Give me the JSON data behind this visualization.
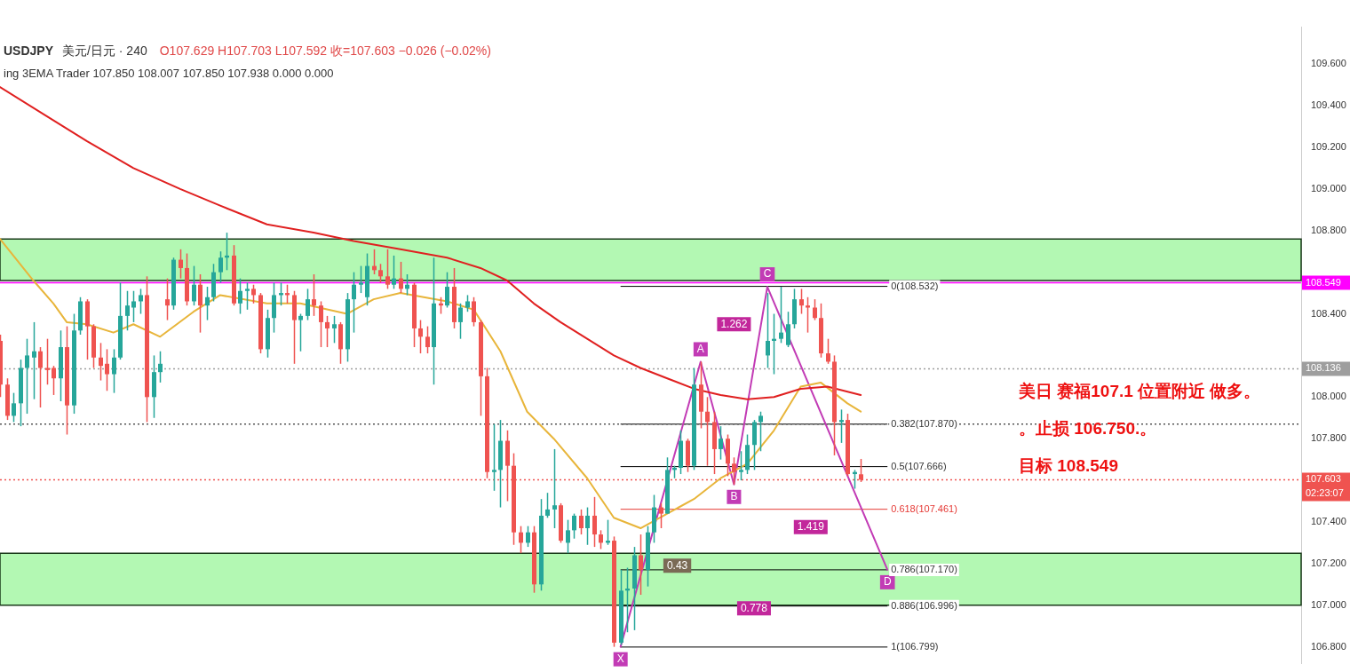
{
  "chart_data": {
    "type": "candlestick",
    "title": "USDJPY",
    "subtitle": "美元/日元 · 240",
    "categories": [
      null,
      null,
      null,
      null,
      null,
      null,
      null,
      null,
      null,
      null,
      null,
      null,
      null,
      null,
      null,
      null,
      null,
      null,
      null,
      null,
      null,
      null,
      null,
      null,
      null,
      null,
      null,
      null,
      null,
      null,
      null,
      null,
      null,
      null,
      null,
      null,
      null,
      null,
      null,
      null,
      null,
      null,
      null,
      null,
      null,
      null,
      null,
      null,
      null,
      null,
      null,
      null,
      null,
      null,
      null,
      null,
      null,
      null,
      null,
      null,
      null,
      null,
      null,
      null,
      null,
      null,
      null,
      null,
      null,
      null,
      null,
      null,
      null,
      null,
      null,
      null,
      null,
      null,
      null,
      null,
      null,
      null,
      null,
      null,
      null,
      null,
      null,
      null,
      null,
      null,
      null,
      null,
      null,
      null,
      null,
      null,
      null,
      null,
      null,
      null,
      null,
      null,
      null,
      null,
      null,
      null,
      null,
      null,
      null,
      null,
      null,
      null,
      null,
      null,
      null,
      null,
      null,
      null,
      null,
      null,
      null,
      null,
      null,
      null,
      null,
      null,
      null,
      null,
      null,
      null,
      null,
      null,
      null,
      null,
      null,
      null,
      null,
      null,
      null,
      null,
      null,
      null,
      null,
      null,
      null,
      null,
      null,
      null,
      null,
      null,
      null,
      null,
      null,
      null,
      null,
      null,
      null,
      null,
      null,
      null,
      null,
      null,
      null,
      null,
      null,
      null,
      null,
      null,
      null,
      null,
      null,
      null,
      null,
      null,
      null,
      null,
      null,
      null,
      null,
      null,
      null,
      null,
      null,
      null,
      null,
      null,
      null,
      null,
      null,
      null,
      null,
      null,
      null,
      null,
      null,
      null
    ],
    "ohlc": [
      [
        108.27,
        108.3,
        108.0,
        108.06
      ],
      [
        108.06,
        108.09,
        107.89,
        107.91
      ],
      [
        107.91,
        108.02,
        107.88,
        107.97
      ],
      [
        107.97,
        108.18,
        107.86,
        108.14
      ],
      [
        108.14,
        108.28,
        107.92,
        108.2
      ],
      [
        108.19,
        108.36,
        107.99,
        108.22
      ],
      [
        108.22,
        108.24,
        107.95,
        108.14
      ],
      [
        108.14,
        108.28,
        108.06,
        108.13
      ],
      [
        108.14,
        108.15,
        108.01,
        108.09
      ],
      [
        108.09,
        108.32,
        107.98,
        108.24
      ],
      [
        108.24,
        108.34,
        107.82,
        107.96
      ],
      [
        107.96,
        108.4,
        107.92,
        108.32
      ],
      [
        108.32,
        108.48,
        108.3,
        108.46
      ],
      [
        108.46,
        108.47,
        108.18,
        108.34
      ],
      [
        108.34,
        108.35,
        108.14,
        108.19
      ],
      [
        108.19,
        108.26,
        108.08,
        108.15
      ],
      [
        108.16,
        108.23,
        108.03,
        108.11
      ],
      [
        108.11,
        108.23,
        108.02,
        108.19
      ],
      [
        108.19,
        108.55,
        108.18,
        108.39
      ],
      [
        108.39,
        108.51,
        108.32,
        108.44
      ],
      [
        108.43,
        108.51,
        108.36,
        108.46
      ],
      [
        108.46,
        108.52,
        108.4,
        108.49
      ],
      [
        108.49,
        108.58,
        107.88,
        108.0
      ],
      [
        108.0,
        108.2,
        107.9,
        108.12
      ],
      [
        108.12,
        108.22,
        108.07,
        108.16
      ],
      [
        108.47,
        108.57,
        108.37,
        108.44
      ],
      [
        108.44,
        108.67,
        108.42,
        108.66
      ],
      [
        108.66,
        108.71,
        108.57,
        108.62
      ],
      [
        108.62,
        108.69,
        108.44,
        108.46
      ],
      [
        108.46,
        108.63,
        108.44,
        108.54
      ],
      [
        108.54,
        108.59,
        108.31,
        108.44
      ],
      [
        108.44,
        108.53,
        108.37,
        108.48
      ],
      [
        108.48,
        108.64,
        108.46,
        108.6
      ],
      [
        108.6,
        108.7,
        108.55,
        108.67
      ],
      [
        108.67,
        108.79,
        108.61,
        108.68
      ],
      [
        108.68,
        108.73,
        108.44,
        108.45
      ],
      [
        108.45,
        108.57,
        108.4,
        108.51
      ],
      [
        108.51,
        108.55,
        108.42,
        108.52
      ],
      [
        108.52,
        108.54,
        108.45,
        108.49
      ],
      [
        108.49,
        108.5,
        108.21,
        108.23
      ],
      [
        108.23,
        108.42,
        108.19,
        108.38
      ],
      [
        108.38,
        108.55,
        108.31,
        108.49
      ],
      [
        108.49,
        108.55,
        108.44,
        108.5
      ],
      [
        108.5,
        108.54,
        108.45,
        108.49
      ],
      [
        108.49,
        108.51,
        108.16,
        108.37
      ],
      [
        108.37,
        108.4,
        108.22,
        108.39
      ],
      [
        108.39,
        108.52,
        108.37,
        108.47
      ],
      [
        108.47,
        108.59,
        108.39,
        108.44
      ],
      [
        108.44,
        108.46,
        108.24,
        108.36
      ],
      [
        108.36,
        108.39,
        108.24,
        108.33
      ],
      [
        108.33,
        108.39,
        108.26,
        108.35
      ],
      [
        108.35,
        108.36,
        108.16,
        108.23
      ],
      [
        108.23,
        108.5,
        108.17,
        108.47
      ],
      [
        108.47,
        108.6,
        108.31,
        108.54
      ],
      [
        108.54,
        108.63,
        108.5,
        108.55
      ],
      [
        108.48,
        108.69,
        108.44,
        108.63
      ],
      [
        108.63,
        108.71,
        108.59,
        108.61
      ],
      [
        108.61,
        108.64,
        108.55,
        108.58
      ],
      [
        108.58,
        108.71,
        108.52,
        108.54
      ],
      [
        108.54,
        108.68,
        108.52,
        108.57
      ],
      [
        108.57,
        108.65,
        108.5,
        108.52
      ],
      [
        108.52,
        108.59,
        108.49,
        108.54
      ],
      [
        108.54,
        108.55,
        108.24,
        108.33
      ],
      [
        108.33,
        108.37,
        108.21,
        108.29
      ],
      [
        108.29,
        108.34,
        108.21,
        108.24
      ],
      [
        108.24,
        108.67,
        108.06,
        108.45
      ],
      [
        108.45,
        108.48,
        108.4,
        108.44
      ],
      [
        108.44,
        108.6,
        108.43,
        108.53
      ],
      [
        108.53,
        108.62,
        108.33,
        108.36
      ],
      [
        108.36,
        108.45,
        108.28,
        108.43
      ],
      [
        108.43,
        108.49,
        108.41,
        108.46
      ],
      [
        108.46,
        108.48,
        108.34,
        108.36
      ],
      [
        108.36,
        108.37,
        107.91,
        108.1
      ],
      [
        108.1,
        108.14,
        107.61,
        107.64
      ],
      [
        107.64,
        107.87,
        107.55,
        107.65
      ],
      [
        107.65,
        107.89,
        107.47,
        107.79
      ],
      [
        107.79,
        107.84,
        107.5,
        107.67
      ],
      [
        107.67,
        107.73,
        107.29,
        107.35
      ],
      [
        107.35,
        107.38,
        107.25,
        107.3
      ],
      [
        107.3,
        107.38,
        107.28,
        107.35
      ],
      [
        107.35,
        107.38,
        107.06,
        107.1
      ],
      [
        107.1,
        107.51,
        107.07,
        107.43
      ],
      [
        107.43,
        107.54,
        107.42,
        107.46
      ],
      [
        107.46,
        107.75,
        107.37,
        107.48
      ],
      [
        107.48,
        107.49,
        107.3,
        107.31
      ],
      [
        107.3,
        107.41,
        107.25,
        107.36
      ],
      [
        107.36,
        107.44,
        107.32,
        107.43
      ],
      [
        107.43,
        107.46,
        107.34,
        107.37
      ],
      [
        107.37,
        107.47,
        107.29,
        107.43
      ],
      [
        107.43,
        107.52,
        107.28,
        107.34
      ],
      [
        107.34,
        107.36,
        107.27,
        107.3
      ],
      [
        107.3,
        107.41,
        107.29,
        107.31
      ],
      [
        107.31,
        107.33,
        106.8,
        106.82
      ],
      [
        106.82,
        107.17,
        106.81,
        107.07
      ],
      [
        107.07,
        107.18,
        106.87,
        107.08
      ],
      [
        107.08,
        107.28,
        106.88,
        107.24
      ],
      [
        107.24,
        107.34,
        107.05,
        107.17
      ],
      [
        107.17,
        107.38,
        107.09,
        107.35
      ],
      [
        107.35,
        107.53,
        107.3,
        107.47
      ],
      [
        107.47,
        107.49,
        107.37,
        107.44
      ],
      [
        107.44,
        107.71,
        107.44,
        107.65
      ],
      [
        107.65,
        107.67,
        107.61,
        107.66
      ],
      [
        107.66,
        107.84,
        107.63,
        107.79
      ],
      [
        107.79,
        107.8,
        107.64,
        107.67
      ],
      [
        107.67,
        108.14,
        107.65,
        108.06
      ],
      [
        108.06,
        108.17,
        107.85,
        107.93
      ],
      [
        107.93,
        108.0,
        107.67,
        107.88
      ],
      [
        107.88,
        107.93,
        107.63,
        107.75
      ],
      [
        107.75,
        107.86,
        107.7,
        107.8
      ],
      [
        107.8,
        107.82,
        107.62,
        107.68
      ],
      [
        107.68,
        107.71,
        107.58,
        107.64
      ],
      [
        107.64,
        107.74,
        107.6,
        107.65
      ],
      [
        107.65,
        107.82,
        107.63,
        107.77
      ],
      [
        107.77,
        107.89,
        107.65,
        107.88
      ],
      [
        107.88,
        107.93,
        107.74,
        107.91
      ],
      [
        108.2,
        108.5,
        108.14,
        108.27
      ],
      [
        108.27,
        108.4,
        108.11,
        108.28
      ],
      [
        108.28,
        108.53,
        108.26,
        108.31
      ],
      [
        108.25,
        108.41,
        108.24,
        108.35
      ],
      [
        108.35,
        108.52,
        108.33,
        108.47
      ],
      [
        108.47,
        108.52,
        108.4,
        108.44
      ],
      [
        108.44,
        108.48,
        108.31,
        108.43
      ],
      [
        108.43,
        108.47,
        108.37,
        108.38
      ],
      [
        108.38,
        108.45,
        108.19,
        108.21
      ],
      [
        108.21,
        108.28,
        108.16,
        108.17
      ],
      [
        108.17,
        108.2,
        107.72,
        107.88
      ],
      [
        107.88,
        107.94,
        107.78,
        107.89
      ],
      [
        107.89,
        107.92,
        107.62,
        107.63
      ],
      [
        107.63,
        107.65,
        107.56,
        107.64
      ],
      [
        107.629,
        107.703,
        107.592,
        107.603
      ],
      null,
      null,
      null,
      null,
      null,
      null,
      null,
      null,
      null,
      null,
      null,
      null,
      null,
      null,
      null,
      null,
      null,
      null,
      null,
      null,
      null,
      null,
      null,
      null,
      null,
      null,
      null,
      null,
      null,
      null,
      null,
      null,
      null,
      null,
      null,
      null,
      null,
      null,
      null,
      null,
      null,
      null,
      null,
      null,
      null,
      null,
      null,
      null,
      null,
      null,
      null,
      null,
      null,
      null,
      null,
      null,
      null,
      null,
      null,
      null,
      null,
      null,
      null,
      null,
      null,
      null
    ],
    "colors": [
      "#ef5350",
      "#ef5350",
      "#26a69a",
      "#26a69a",
      "#26a69a",
      "#26a69a",
      "#ef5350",
      "#ef5350",
      "#ef5350",
      "#26a69a",
      "#ef5350",
      "#26a69a",
      "#26a69a",
      "#ef5350",
      "#ef5350",
      "#ef5350",
      "#ef5350",
      "#26a69a",
      "#26a69a",
      "#26a69a",
      "#26a69a",
      "#26a69a",
      "#ef5350",
      "#26a69a",
      "#26a69a",
      "#ef5350",
      "#26a69a",
      "#ef5350",
      "#ef5350",
      "#26a69a",
      "#ef5350",
      "#26a69a",
      "#26a69a",
      "#26a69a",
      "#26a69a",
      "#ef5350",
      "#26a69a",
      "#26a69a",
      "#ef5350",
      "#ef5350",
      "#26a69a",
      "#26a69a",
      "#26a69a",
      "#ef5350",
      "#ef5350",
      "#26a69a",
      "#26a69a",
      "#ef5350",
      "#ef5350",
      "#ef5350",
      "#26a69a",
      "#ef5350",
      "#26a69a",
      "#26a69a",
      "#26a69a",
      "#26a69a",
      "#ef5350",
      "#ef5350",
      "#ef5350",
      "#26a69a",
      "#ef5350",
      "#26a69a",
      "#ef5350",
      "#ef5350",
      "#ef5350",
      "#26a69a",
      "#ef5350",
      "#26a69a",
      "#ef5350",
      "#26a69a",
      "#26a69a",
      "#ef5350",
      "#ef5350",
      "#ef5350",
      "#26a69a",
      "#26a69a",
      "#ef5350",
      "#ef5350",
      "#ef5350",
      "#26a69a",
      "#ef5350",
      "#26a69a",
      "#26a69a",
      "#26a69a",
      "#ef5350",
      "#26a69a",
      "#26a69a",
      "#ef5350",
      "#26a69a",
      "#ef5350",
      "#ef5350",
      "#26a69a",
      "#ef5350",
      "#26a69a",
      "#26a69a",
      "#26a69a",
      "#ef5350",
      "#26a69a",
      "#26a69a",
      "#ef5350",
      "#26a69a",
      "#26a69a",
      "#26a69a",
      "#ef5350",
      "#26a69a",
      "#ef5350",
      "#ef5350",
      "#ef5350",
      "#26a69a",
      "#ef5350",
      "#ef5350",
      "#26a69a",
      "#26a69a",
      "#26a69a",
      "#26a69a",
      "#26a69a",
      "#26a69a",
      "#26a69a",
      "#26a69a",
      "#26a69a",
      "#ef5350",
      "#ef5350",
      "#ef5350",
      "#ef5350",
      "#ef5350",
      "#ef5350",
      "#26a69a",
      "#ef5350",
      "#26a69a",
      "#ef5350",
      null,
      null,
      null,
      null,
      null,
      null,
      null,
      null,
      null,
      null,
      null,
      null,
      null,
      null,
      null,
      null,
      null,
      null,
      null,
      null,
      null,
      null,
      null,
      null,
      null,
      null,
      null,
      null,
      null,
      null,
      null,
      null,
      null,
      null,
      null,
      null,
      null,
      null,
      null,
      null,
      null,
      null,
      null,
      null,
      null,
      null,
      null,
      null,
      null,
      null,
      null,
      null,
      null,
      null,
      null,
      null,
      null,
      null,
      null,
      null,
      null,
      null,
      null,
      null,
      null,
      null
    ],
    "series": [
      {
        "type": "line",
        "color": "#e02020",
        "values": [
          109.49,
          null,
          null,
          null,
          null,
          null,
          null,
          109.35,
          null,
          null,
          null,
          null,
          null,
          109.23,
          null,
          null,
          null,
          null,
          null,
          null,
          109.1,
          null,
          null,
          null,
          null,
          null,
          null,
          109.0,
          null,
          null,
          null,
          null,
          null,
          108.92,
          null,
          null,
          null,
          null,
          null,
          null,
          108.83,
          null,
          null,
          null,
          null,
          null,
          null,
          108.79,
          null,
          null,
          null,
          null,
          null,
          108.75,
          null,
          null,
          null,
          null,
          null,
          null,
          108.71,
          null,
          null,
          null,
          null,
          null,
          null,
          108.67,
          null,
          null,
          null,
          null,
          108.62,
          null,
          null,
          null,
          108.56,
          null,
          null,
          null,
          108.45,
          null,
          null,
          null,
          108.36,
          null,
          null,
          null,
          108.28,
          null,
          null,
          null,
          108.2,
          null,
          null,
          null,
          108.14,
          null,
          null,
          null,
          108.09,
          null,
          null,
          null,
          108.04,
          null,
          null,
          null,
          108.01,
          null,
          null,
          null,
          107.99,
          null,
          null,
          null,
          108.0,
          null,
          null,
          null,
          108.04,
          null,
          null,
          null,
          108.05,
          null,
          null,
          null,
          null,
          108.01,
          null,
          null,
          null,
          null,
          null,
          null,
          null,
          null,
          null,
          null,
          null,
          null,
          null,
          null,
          null,
          null,
          null,
          null,
          null,
          null,
          null,
          null,
          null,
          null,
          null,
          null,
          null,
          null,
          null,
          null,
          null,
          null,
          null,
          null,
          null,
          null,
          null,
          null,
          null,
          null,
          null,
          null,
          null,
          null,
          null,
          null,
          null,
          null,
          null,
          null,
          null,
          null,
          null,
          null,
          null,
          null,
          null,
          null,
          null,
          null,
          null,
          null,
          null,
          null,
          null,
          null
        ]
      },
      {
        "type": "line",
        "color": "#e8b53a",
        "values": [
          108.76,
          null,
          null,
          null,
          null,
          108.56,
          null,
          null,
          108.45,
          null,
          108.36,
          null,
          null,
          108.35,
          null,
          null,
          null,
          108.31,
          null,
          null,
          108.35,
          null,
          null,
          null,
          108.29,
          null,
          null,
          null,
          null,
          108.41,
          null,
          null,
          null,
          108.49,
          null,
          null,
          null,
          null,
          null,
          null,
          108.45,
          null,
          null,
          null,
          null,
          108.45,
          null,
          null,
          null,
          null,
          null,
          null,
          108.4,
          null,
          null,
          null,
          108.47,
          null,
          null,
          null,
          108.5,
          null,
          null,
          null,
          null,
          null,
          null,
          108.46,
          null,
          null,
          null,
          108.42,
          null,
          null,
          null,
          108.22,
          null,
          null,
          null,
          107.93,
          null,
          null,
          null,
          107.8,
          null,
          null,
          null,
          null,
          107.61,
          null,
          null,
          null,
          107.42,
          null,
          null,
          null,
          107.37,
          null,
          null,
          null,
          107.44,
          null,
          null,
          null,
          107.51,
          null,
          null,
          null,
          107.61,
          null,
          null,
          null,
          107.68,
          null,
          null,
          null,
          107.84,
          null,
          null,
          null,
          108.05,
          null,
          null,
          108.07,
          null,
          null,
          null,
          107.97,
          null,
          107.93,
          null,
          null,
          null,
          null,
          null,
          null,
          null,
          null,
          null,
          null,
          null,
          null,
          null,
          null,
          null,
          null,
          null,
          null,
          null,
          null,
          null,
          null,
          null,
          null,
          null,
          null,
          null,
          null,
          null,
          null,
          null,
          null,
          null,
          null,
          null,
          null,
          null,
          null,
          null,
          null,
          null,
          null,
          null,
          null,
          null,
          null,
          null,
          null,
          null,
          null,
          null,
          null,
          null,
          null,
          null,
          null,
          null,
          null,
          null,
          null,
          null,
          null,
          null,
          null,
          null,
          null
        ]
      },
      {
        "type": "line",
        "color": "#c23bb5",
        "values": [
          null,
          null,
          null,
          null,
          null,
          null,
          null,
          null,
          null,
          null,
          null,
          null,
          null,
          null,
          null,
          null,
          null,
          null,
          null,
          null,
          null,
          null,
          null,
          null,
          null,
          null,
          null,
          null,
          null,
          null,
          null,
          null,
          null,
          null,
          null,
          null,
          null,
          null,
          null,
          null,
          null,
          null,
          null,
          null,
          null,
          null,
          null,
          null,
          null,
          null,
          null,
          null,
          null,
          null,
          null,
          null,
          null,
          null,
          null,
          null,
          null,
          null,
          null,
          null,
          null,
          null,
          null,
          null,
          null,
          null,
          null,
          null,
          null,
          null,
          null,
          null,
          null,
          null,
          null,
          null,
          null,
          null,
          null,
          null,
          null,
          null,
          null,
          null,
          null,
          null,
          null,
          null,
          null,
          106.8,
          null,
          null,
          null,
          null,
          null,
          null,
          null,
          null,
          null,
          null,
          null,
          108.17,
          null,
          null,
          null,
          null,
          107.58,
          null,
          null,
          null,
          null,
          108.53,
          null,
          null,
          null,
          null,
          null,
          null,
          null,
          null,
          null,
          null,
          null,
          null,
          null,
          null,
          null,
          null,
          null,
          107.17,
          null,
          null,
          null,
          null,
          null,
          null,
          null,
          null,
          null,
          null,
          null,
          null,
          null,
          null,
          null,
          null,
          null,
          null,
          null,
          null,
          null,
          null,
          null,
          null,
          null,
          null,
          null,
          null,
          null,
          null,
          null,
          null,
          null,
          null,
          null,
          null,
          null,
          null,
          null,
          null,
          null,
          null,
          null,
          null,
          null,
          null,
          null,
          null,
          null,
          null,
          null,
          null,
          null,
          null,
          null,
          null,
          null,
          null,
          null,
          null,
          null,
          null
        ],
        "value_labels": [
          null,
          null,
          null,
          null,
          null,
          null,
          null,
          null,
          null,
          null,
          null,
          null,
          null,
          null,
          null,
          null,
          null,
          null,
          null,
          null,
          null,
          null,
          null,
          null,
          null,
          null,
          null,
          null,
          null,
          null,
          null,
          null,
          null,
          null,
          null,
          null,
          null,
          null,
          null,
          null,
          null,
          null,
          null,
          null,
          null,
          null,
          null,
          null,
          null,
          null,
          null,
          null,
          null,
          null,
          null,
          null,
          null,
          null,
          null,
          null,
          null,
          null,
          null,
          null,
          null,
          null,
          null,
          null,
          null,
          null,
          null,
          null,
          null,
          null,
          null,
          null,
          null,
          null,
          null,
          null,
          null,
          null,
          null,
          null,
          null,
          null,
          null,
          null,
          null,
          null,
          null,
          null,
          null,
          "X",
          null,
          null,
          null,
          null,
          null,
          null,
          null,
          null,
          null,
          null,
          null,
          "A",
          null,
          null,
          null,
          null,
          "B",
          null,
          null,
          null,
          null,
          "C",
          null,
          null,
          null,
          null,
          null,
          null,
          null,
          null,
          null,
          null,
          null,
          null,
          null,
          null,
          null,
          null,
          null,
          "D",
          null,
          null,
          null,
          null,
          null,
          null,
          null,
          null,
          null,
          null,
          null,
          null,
          null,
          null,
          null,
          null,
          null,
          null,
          null,
          null,
          null,
          null,
          null,
          null,
          null,
          null,
          null,
          null,
          null,
          null,
          null,
          null,
          null,
          null,
          null,
          null,
          null,
          null,
          null,
          null,
          null,
          null,
          null,
          null,
          null,
          null,
          null,
          null,
          null,
          null,
          null,
          null,
          null,
          null,
          null,
          null,
          null,
          null,
          null,
          null,
          null,
          null
        ]
      }
    ],
    "ylim": [
      106.72,
      109.78
    ],
    "yticks": [
      {
        "value": 106.8,
        "label": "106.800"
      },
      {
        "value": 107.0,
        "label": "107.000"
      },
      {
        "value": 107.2,
        "label": "107.200"
      },
      {
        "value": 107.4,
        "label": "107.400"
      },
      {
        "value": 107.8,
        "label": "107.800"
      },
      {
        "value": 108.0,
        "label": "108.000"
      },
      {
        "value": 108.4,
        "label": "108.400"
      },
      {
        "value": 108.8,
        "label": "108.800"
      },
      {
        "value": 109.0,
        "label": "109.000"
      },
      {
        "value": 109.2,
        "label": "109.200"
      },
      {
        "value": 109.4,
        "label": "109.400"
      },
      {
        "value": 109.6,
        "label": "109.600"
      }
    ],
    "tick_labels": "y",
    "bands": [
      {
        "axis": "y",
        "from": 108.56,
        "to": 108.76,
        "color": "#a6f7a6"
      },
      {
        "axis": "y",
        "from": 107.0,
        "to": 107.25,
        "color": "#a6f7a6"
      }
    ],
    "ref_lines": [
      {
        "axis": "y",
        "value": 108.532,
        "label": "0(108.532)",
        "color": "#000000"
      },
      {
        "axis": "y",
        "value": 107.87,
        "label": "0.382(107.870)",
        "color": "#000000"
      },
      {
        "axis": "y",
        "value": 107.666,
        "label": "0.5(107.666)",
        "color": "#000000"
      },
      {
        "axis": "y",
        "value": 107.461,
        "label": "0.618(107.461)",
        "color": "#e53935"
      },
      {
        "axis": "y",
        "value": 107.17,
        "label": "0.786(107.170)",
        "color": "#000000"
      },
      {
        "axis": "y",
        "value": 106.996,
        "label": "0.886(106.996)",
        "color": "#000000"
      },
      {
        "axis": "y",
        "value": 106.799,
        "label": "1(106.799)",
        "color": "#000000"
      },
      {
        "axis": "y",
        "value": 108.549,
        "label": "108.549",
        "color": "#ff00ff",
        "line_style": "solid"
      },
      {
        "axis": "y",
        "value": 108.136,
        "label": "108.136",
        "color": "#9e9e9e",
        "line_style": "dotted"
      },
      {
        "axis": "y",
        "value": 107.87,
        "color": "#555555",
        "line_style": "dotted"
      },
      {
        "axis": "y",
        "value": 107.603,
        "label": "107.603\n02:23:07",
        "color": "#ef5350",
        "line_style": "dotted"
      }
    ],
    "annotations": [
      "O107.629 H107.703 L107.592 收=107.603 −0.026 (−0.02%)",
      "ing 3EMA Trader 107.850 108.007 107.850 107.938 0.000 0.000",
      "1.262",
      "1.419",
      "0.43",
      "0.778",
      "美日 赛福107.1 位置附近 做多。",
      "。止损 106.750.。",
      "目标 108.549"
    ]
  }
}
